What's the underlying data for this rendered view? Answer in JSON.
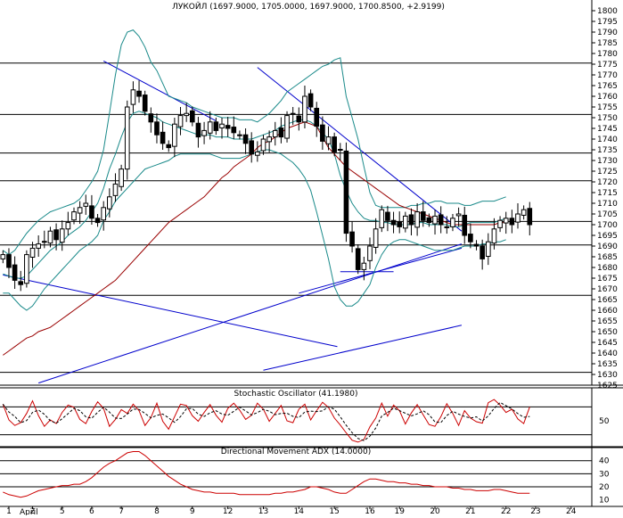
{
  "chart_data": {
    "type": "candlestick",
    "title": "ЛУКОЙЛ (1697.9000, 1705.0000, 1697.9000, 1700.8500, +2.9199)",
    "price": {
      "ylim": [
        1625,
        1800
      ],
      "y_ticks": [
        1625,
        1630,
        1635,
        1640,
        1645,
        1650,
        1655,
        1660,
        1665,
        1670,
        1675,
        1680,
        1685,
        1690,
        1695,
        1700,
        1705,
        1710,
        1715,
        1720,
        1725,
        1730,
        1735,
        1740,
        1745,
        1750,
        1755,
        1760,
        1765,
        1770,
        1775,
        1780,
        1785,
        1790,
        1795,
        1800
      ],
      "horizontal_levels": [
        1775.5,
        1751.5,
        1733.5,
        1720.5,
        1701.5,
        1690.5,
        1667,
        1631
      ],
      "trendlines": [
        {
          "from": [
            0,
            1676.5
          ],
          "to": [
            56.5,
            1643
          ]
        },
        {
          "from": [
            17,
            1776.5
          ],
          "to": [
            36,
            1748.5
          ]
        },
        {
          "from": [
            43,
            1773.5
          ],
          "to": [
            77.5,
            1697
          ]
        },
        {
          "from": [
            6,
            1626
          ],
          "to": [
            77.5,
            1691
          ]
        },
        {
          "from": [
            44,
            1632
          ],
          "to": [
            77.5,
            1653
          ]
        },
        {
          "from": [
            50,
            1668
          ],
          "to": [
            77.5,
            1689
          ]
        },
        {
          "from": [
            57,
            1678
          ],
          "to": [
            66,
            1678
          ]
        }
      ],
      "close": [
        1686,
        1680,
        1674,
        1672,
        1686,
        1689,
        1691,
        1692,
        1697,
        1693,
        1698,
        1701,
        1706,
        1708,
        1710,
        1703,
        1701,
        1708,
        1713,
        1719,
        1726,
        1755,
        1763,
        1760,
        1753,
        1748,
        1742,
        1738,
        1736,
        1747,
        1751,
        1752,
        1748,
        1741,
        1744,
        1748,
        1744,
        1747,
        1745,
        1743,
        1742,
        1738,
        1733,
        1734,
        1740,
        1741,
        1744,
        1741,
        1751,
        1752,
        1748,
        1760,
        1755,
        1746,
        1739,
        1741,
        1734,
        1735,
        1696,
        1690,
        1679,
        1682,
        1690,
        1698,
        1707,
        1702,
        1700,
        1699,
        1704,
        1700,
        1706,
        1702,
        1701,
        1704,
        1700,
        1699,
        1703,
        1705,
        1695,
        1692,
        1690,
        1684,
        1692,
        1698,
        1702,
        1703,
        1700,
        1705,
        1707,
        1700
      ],
      "bollinger_upper": [
        1688,
        1686,
        1688,
        1692,
        1696,
        1699,
        1702,
        1704,
        1706,
        1707,
        1708,
        1709,
        1710,
        1712,
        1716,
        1720,
        1725,
        1735,
        1752,
        1770,
        1784,
        1790,
        1791,
        1788,
        1783,
        1776,
        1772,
        1766,
        1760,
        1759,
        1758,
        1757,
        1755,
        1754,
        1753,
        1752,
        1751,
        1750,
        1750,
        1750,
        1749,
        1749,
        1749,
        1748,
        1750,
        1752,
        1755,
        1758,
        1762,
        1764,
        1766,
        1768,
        1770,
        1772,
        1774,
        1775,
        1777,
        1778,
        1760,
        1750,
        1740,
        1727,
        1715,
        1709,
        1708,
        1708,
        1708,
        1708,
        1708,
        1709,
        1709,
        1710,
        1710,
        1711,
        1711,
        1710,
        1710,
        1710,
        1709,
        1709,
        1710,
        1711,
        1711,
        1711,
        1712,
        1713
      ],
      "bollinger_middle": [
        1677,
        1676,
        1675,
        1675,
        1676,
        1679,
        1682,
        1685,
        1688,
        1690,
        1692,
        1695,
        1697,
        1699,
        1702,
        1706,
        1710,
        1717,
        1726,
        1733,
        1741,
        1748,
        1752,
        1753,
        1752,
        1751,
        1750,
        1748,
        1747,
        1746,
        1745,
        1744,
        1743,
        1742,
        1742,
        1742,
        1741,
        1741,
        1741,
        1740,
        1740,
        1740,
        1740,
        1741,
        1742,
        1743,
        1744,
        1746,
        1747,
        1748,
        1749,
        1749,
        1748,
        1746,
        1743,
        1740,
        1733,
        1723,
        1716,
        1710,
        1706,
        1703,
        1702,
        1702,
        1701,
        1701,
        1700,
        1700,
        1700,
        1700,
        1701,
        1701,
        1700,
        1700,
        1700,
        1700,
        1699,
        1699,
        1700,
        1701,
        1701,
        1701,
        1701,
        1701,
        1702,
        1703
      ],
      "bollinger_lower": [
        1668,
        1668,
        1665,
        1662,
        1660,
        1662,
        1666,
        1670,
        1673,
        1676,
        1679,
        1682,
        1685,
        1688,
        1690,
        1692,
        1695,
        1702,
        1706,
        1711,
        1714,
        1717,
        1720,
        1723,
        1726,
        1727,
        1728,
        1729,
        1730,
        1732,
        1733,
        1733,
        1733,
        1733,
        1733,
        1733,
        1732,
        1731,
        1731,
        1731,
        1731,
        1732,
        1733,
        1734,
        1735,
        1735,
        1734,
        1733,
        1731,
        1729,
        1726,
        1722,
        1716,
        1706,
        1695,
        1684,
        1671,
        1665,
        1662,
        1662,
        1664,
        1668,
        1672,
        1680,
        1686,
        1690,
        1692,
        1693,
        1693,
        1692,
        1691,
        1690,
        1689,
        1688,
        1688,
        1688,
        1688,
        1689,
        1690,
        1690,
        1690,
        1691,
        1691,
        1692,
        1692,
        1693
      ],
      "ma_red": [
        1639,
        1641,
        1643,
        1645,
        1647,
        1648,
        1650,
        1651,
        1652,
        1654,
        1656,
        1658,
        1660,
        1662,
        1664,
        1666,
        1668,
        1670,
        1672,
        1674,
        1677,
        1680,
        1683,
        1686,
        1689,
        1692,
        1695,
        1698,
        1701,
        1703,
        1705,
        1707,
        1709,
        1711,
        1713,
        1716,
        1719,
        1722,
        1724,
        1727,
        1729,
        1731,
        1733,
        1736,
        1738,
        1739,
        1741,
        1743,
        1745,
        1746,
        1747,
        1748,
        1747,
        1746,
        1741,
        1736,
        1733,
        1730,
        1727,
        1725,
        1723,
        1721,
        1719,
        1717,
        1715,
        1713,
        1711,
        1709,
        1708,
        1707,
        1706,
        1705,
        1704,
        1703,
        1702,
        1701,
        1700,
        1700,
        1700,
        1700,
        1700,
        1700,
        1700,
        1700,
        1701,
        1701
      ]
    },
    "stochastic": {
      "title": "Stochastic Oscillator (41.1980)",
      "ylim": [
        0,
        100
      ],
      "y_ticks": [
        50
      ],
      "levels": [
        80,
        20
      ],
      "k": [
        86,
        52,
        40,
        46,
        66,
        93,
        61,
        38,
        52,
        44,
        68,
        84,
        79,
        53,
        44,
        70,
        91,
        77,
        38,
        53,
        74,
        66,
        86,
        72,
        40,
        57,
        88,
        49,
        32,
        59,
        86,
        83,
        61,
        49,
        68,
        85,
        62,
        47,
        77,
        88,
        73,
        53,
        62,
        88,
        75,
        49,
        66,
        83,
        50,
        46,
        75,
        86,
        52,
        72,
        90,
        79,
        56,
        41,
        24,
        8,
        4,
        10,
        37,
        56,
        88,
        60,
        84,
        72,
        43,
        67,
        85,
        63,
        42,
        38,
        59,
        87,
        66,
        40,
        72,
        56,
        48,
        45,
        89,
        96,
        84,
        68,
        75,
        54,
        44,
        80
      ]
    },
    "adx": {
      "title": "Directional Movement ADX (14.0000)",
      "ylim": [
        5,
        48
      ],
      "y_ticks": [
        10,
        20,
        30,
        40
      ],
      "levels": [
        40,
        30,
        20
      ],
      "values": [
        16,
        14,
        13,
        12,
        13,
        15,
        17,
        18,
        19,
        20,
        21,
        21,
        22,
        22,
        24,
        27,
        31,
        35,
        38,
        40,
        43,
        46,
        47,
        47,
        44,
        40,
        36,
        32,
        28,
        25,
        22,
        20,
        18,
        17,
        16,
        16,
        15,
        15,
        15,
        15,
        14,
        14,
        14,
        14,
        14,
        14,
        15,
        15,
        16,
        16,
        17,
        18,
        20,
        20,
        19,
        18,
        16,
        15,
        15,
        18,
        21,
        24,
        26,
        26,
        25,
        24,
        24,
        23,
        23,
        22,
        22,
        21,
        21,
        20,
        20,
        20,
        19,
        19,
        18,
        18,
        17,
        17,
        17,
        18,
        18,
        17,
        16,
        15,
        15,
        15
      ]
    },
    "x_axis": {
      "tick_labels": [
        "1",
        "2",
        "5",
        "6",
        "7",
        "8",
        "9",
        "12",
        "13",
        "14",
        "15",
        "16",
        "19",
        "20",
        "21",
        "22",
        "23",
        "24"
      ],
      "tick_positions": [
        1,
        5,
        10,
        15,
        20,
        26,
        32,
        38,
        44,
        50,
        56,
        62,
        67,
        73,
        79,
        85,
        90,
        96
      ],
      "month_label": "April",
      "n_slots": 100
    }
  }
}
